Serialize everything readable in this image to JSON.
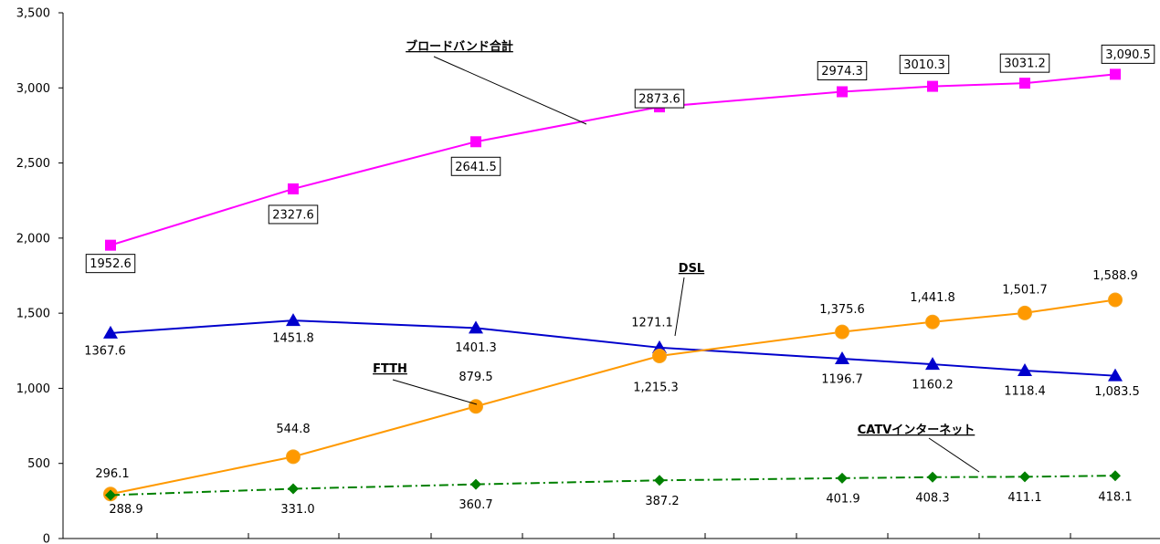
{
  "chart_data": {
    "type": "line",
    "ylim": [
      0,
      3500
    ],
    "y_ticks": [
      "0",
      "500",
      "1,000",
      "1,500",
      "2,000",
      "2,500",
      "3,000",
      "3,500"
    ],
    "grid": false,
    "x": [
      1,
      2,
      3,
      4,
      5,
      6,
      7,
      8
    ],
    "series": [
      {
        "name": "ブロードバンド合計",
        "color": "#ff00ff",
        "marker": "square",
        "line_style": "solid",
        "values": [
          1952.6,
          2327.6,
          2641.5,
          2873.6,
          2974.3,
          3010.3,
          3031.2,
          3090.5
        ],
        "labels": [
          "1952.6",
          "2327.6",
          "2641.5",
          "2873.6",
          "2974.3",
          "3010.3",
          "3031.2",
          "3,090.5"
        ]
      },
      {
        "name": "DSL",
        "color": "#0000cc",
        "marker": "triangle",
        "line_style": "solid",
        "values": [
          1367.6,
          1451.8,
          1401.3,
          1271.1,
          1196.7,
          1160.2,
          1118.4,
          1083.5
        ],
        "labels": [
          "1367.6",
          "1451.8",
          "1401.3",
          "1271.1",
          "1196.7",
          "1160.2",
          "1118.4",
          "1,083.5"
        ]
      },
      {
        "name": "FTTH",
        "color": "#ff9900",
        "marker": "circle",
        "line_style": "solid",
        "values": [
          296.1,
          544.8,
          879.5,
          1215.3,
          1375.6,
          1441.8,
          1501.7,
          1588.9
        ],
        "labels": [
          "296.1",
          "544.8",
          "879.5",
          "1,215.3",
          "1,375.6",
          "1,441.8",
          "1,501.7",
          "1,588.9"
        ]
      },
      {
        "name": "CATVインターネット",
        "color": "#008000",
        "marker": "diamond",
        "line_style": "dashdot",
        "values": [
          288.9,
          331.0,
          360.7,
          387.2,
          401.9,
          408.3,
          411.1,
          418.1
        ],
        "labels": [
          "288.9",
          "331.0",
          "360.7",
          "387.2",
          "401.9",
          "408.3",
          "411.1",
          "418.1"
        ]
      }
    ]
  }
}
